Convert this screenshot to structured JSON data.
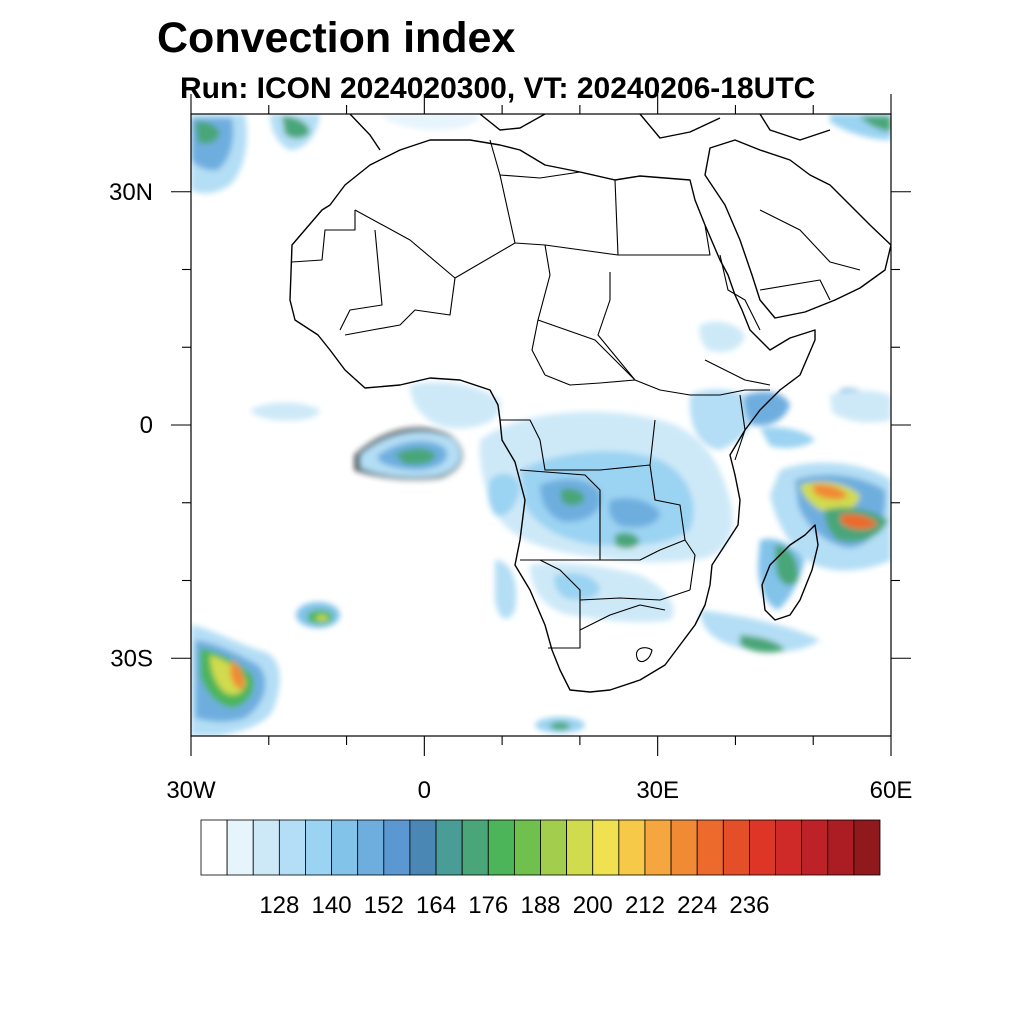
{
  "title": "Convection index",
  "subtitle": "Run: ICON 2024020300,  VT: 20240206-18UTC",
  "map": {
    "projection": "cylindrical equidistant",
    "lon_range": [
      -30,
      60
    ],
    "lat_range": [
      -40,
      40
    ],
    "lon_ticks": [
      {
        "value": -30,
        "label": "30W"
      },
      {
        "value": 0,
        "label": "0"
      },
      {
        "value": 30,
        "label": "30E"
      },
      {
        "value": 60,
        "label": "60E"
      }
    ],
    "lat_ticks": [
      {
        "value": 30,
        "label": "30N"
      },
      {
        "value": 0,
        "label": "0"
      },
      {
        "value": -30,
        "label": "30S"
      }
    ],
    "minor_lon_ticks": [
      -20,
      -10,
      10,
      20,
      40,
      50
    ],
    "minor_lat_ticks": [
      20,
      10,
      -10,
      -20
    ]
  },
  "colorbar": {
    "colors": [
      "#ffffff",
      "#e6f4fc",
      "#cde9f8",
      "#b4def5",
      "#9bd3f2",
      "#82c3ea",
      "#6eaedf",
      "#5b98d2",
      "#4a87b5",
      "#4a9c96",
      "#4aa678",
      "#4cb55a",
      "#6fc04c",
      "#a3cd4c",
      "#d0dc4e",
      "#efe14f",
      "#f7c948",
      "#f6a63e",
      "#f18a35",
      "#ec6b2c",
      "#e54f28",
      "#dd3627",
      "#d02a28",
      "#bd2228",
      "#ab1d23",
      "#8f191c"
    ],
    "labels": [
      "128",
      "140",
      "152",
      "164",
      "176",
      "188",
      "200",
      "212",
      "224",
      "236"
    ]
  }
}
